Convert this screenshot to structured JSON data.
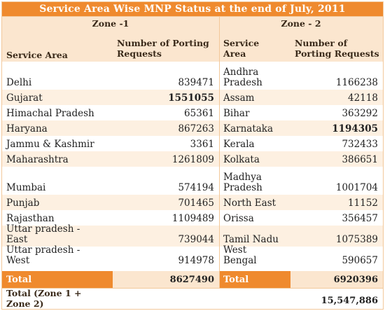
{
  "title": "Service Area Wise MNP Status at the end of July, 2011",
  "zone1": {
    "label": "Zone -1",
    "col_service": "Service Area",
    "col_requests_line1": "Number of Porting",
    "col_requests_line2": "Requests",
    "rows": [
      {
        "l1": "",
        "l2": "Delhi",
        "value": "839471",
        "bold": false
      },
      {
        "l1": "",
        "l2": "Gujarat",
        "value": "1551055",
        "bold": true
      },
      {
        "l1": "",
        "l2": "Himachal Pradesh",
        "value": "65361",
        "bold": false
      },
      {
        "l1": "",
        "l2": "Haryana",
        "value": "867263",
        "bold": false
      },
      {
        "l1": "",
        "l2": "Jammu & Kashmir",
        "value": "3361",
        "bold": false
      },
      {
        "l1": "",
        "l2": "Maharashtra",
        "value": "1261809",
        "bold": false
      },
      {
        "l1": "",
        "l2": "Mumbai",
        "value": "574194",
        "bold": false
      },
      {
        "l1": "",
        "l2": "Punjab",
        "value": "701465",
        "bold": false
      },
      {
        "l1": "",
        "l2": "Rajasthan",
        "value": "1109489",
        "bold": false
      },
      {
        "l1": "Uttar pradesh -",
        "l2": "East",
        "value": "739044",
        "bold": false
      },
      {
        "l1": "Uttar pradesh -",
        "l2": "West",
        "value": "914978",
        "bold": false
      }
    ],
    "total_label": "Total",
    "total_value": "8627490"
  },
  "zone2": {
    "label": "Zone - 2",
    "col_service_line1": "Service",
    "col_service_line2": "Area",
    "col_requests_line1": "Number of",
    "col_requests_line2": "Porting Requests",
    "rows": [
      {
        "l1": "Andhra",
        "l2": "Pradesh",
        "value": "1166238",
        "bold": false
      },
      {
        "l1": "",
        "l2": "Assam",
        "value": "42118",
        "bold": false
      },
      {
        "l1": "",
        "l2": "Bihar",
        "value": "363292",
        "bold": false
      },
      {
        "l1": "",
        "l2": "Karnataka",
        "value": "1194305",
        "bold": true
      },
      {
        "l1": "",
        "l2": "Kerala",
        "value": "732433",
        "bold": false
      },
      {
        "l1": "",
        "l2": "Kolkata",
        "value": "386651",
        "bold": false
      },
      {
        "l1": "Madhya",
        "l2": "Pradesh",
        "value": "1001704",
        "bold": false
      },
      {
        "l1": "",
        "l2": "North East",
        "value": "11152",
        "bold": false
      },
      {
        "l1": "",
        "l2": "Orissa",
        "value": "356457",
        "bold": false
      },
      {
        "l1": "",
        "l2": "Tamil Nadu",
        "value": "1075389",
        "bold": false
      },
      {
        "l1": "West",
        "l2": "Bengal",
        "value": "590657",
        "bold": false
      }
    ],
    "total_label": "Total",
    "total_value": "6920396"
  },
  "grand_total": {
    "label_line1": "Total (Zone 1 +",
    "label_line2": "Zone 2)",
    "value": "15,547,886"
  },
  "colors": {
    "accent": "#ef8a2e",
    "header_bg": "#fbe6cf",
    "stripe": "#fdf0e1",
    "border": "#f2c89a"
  }
}
